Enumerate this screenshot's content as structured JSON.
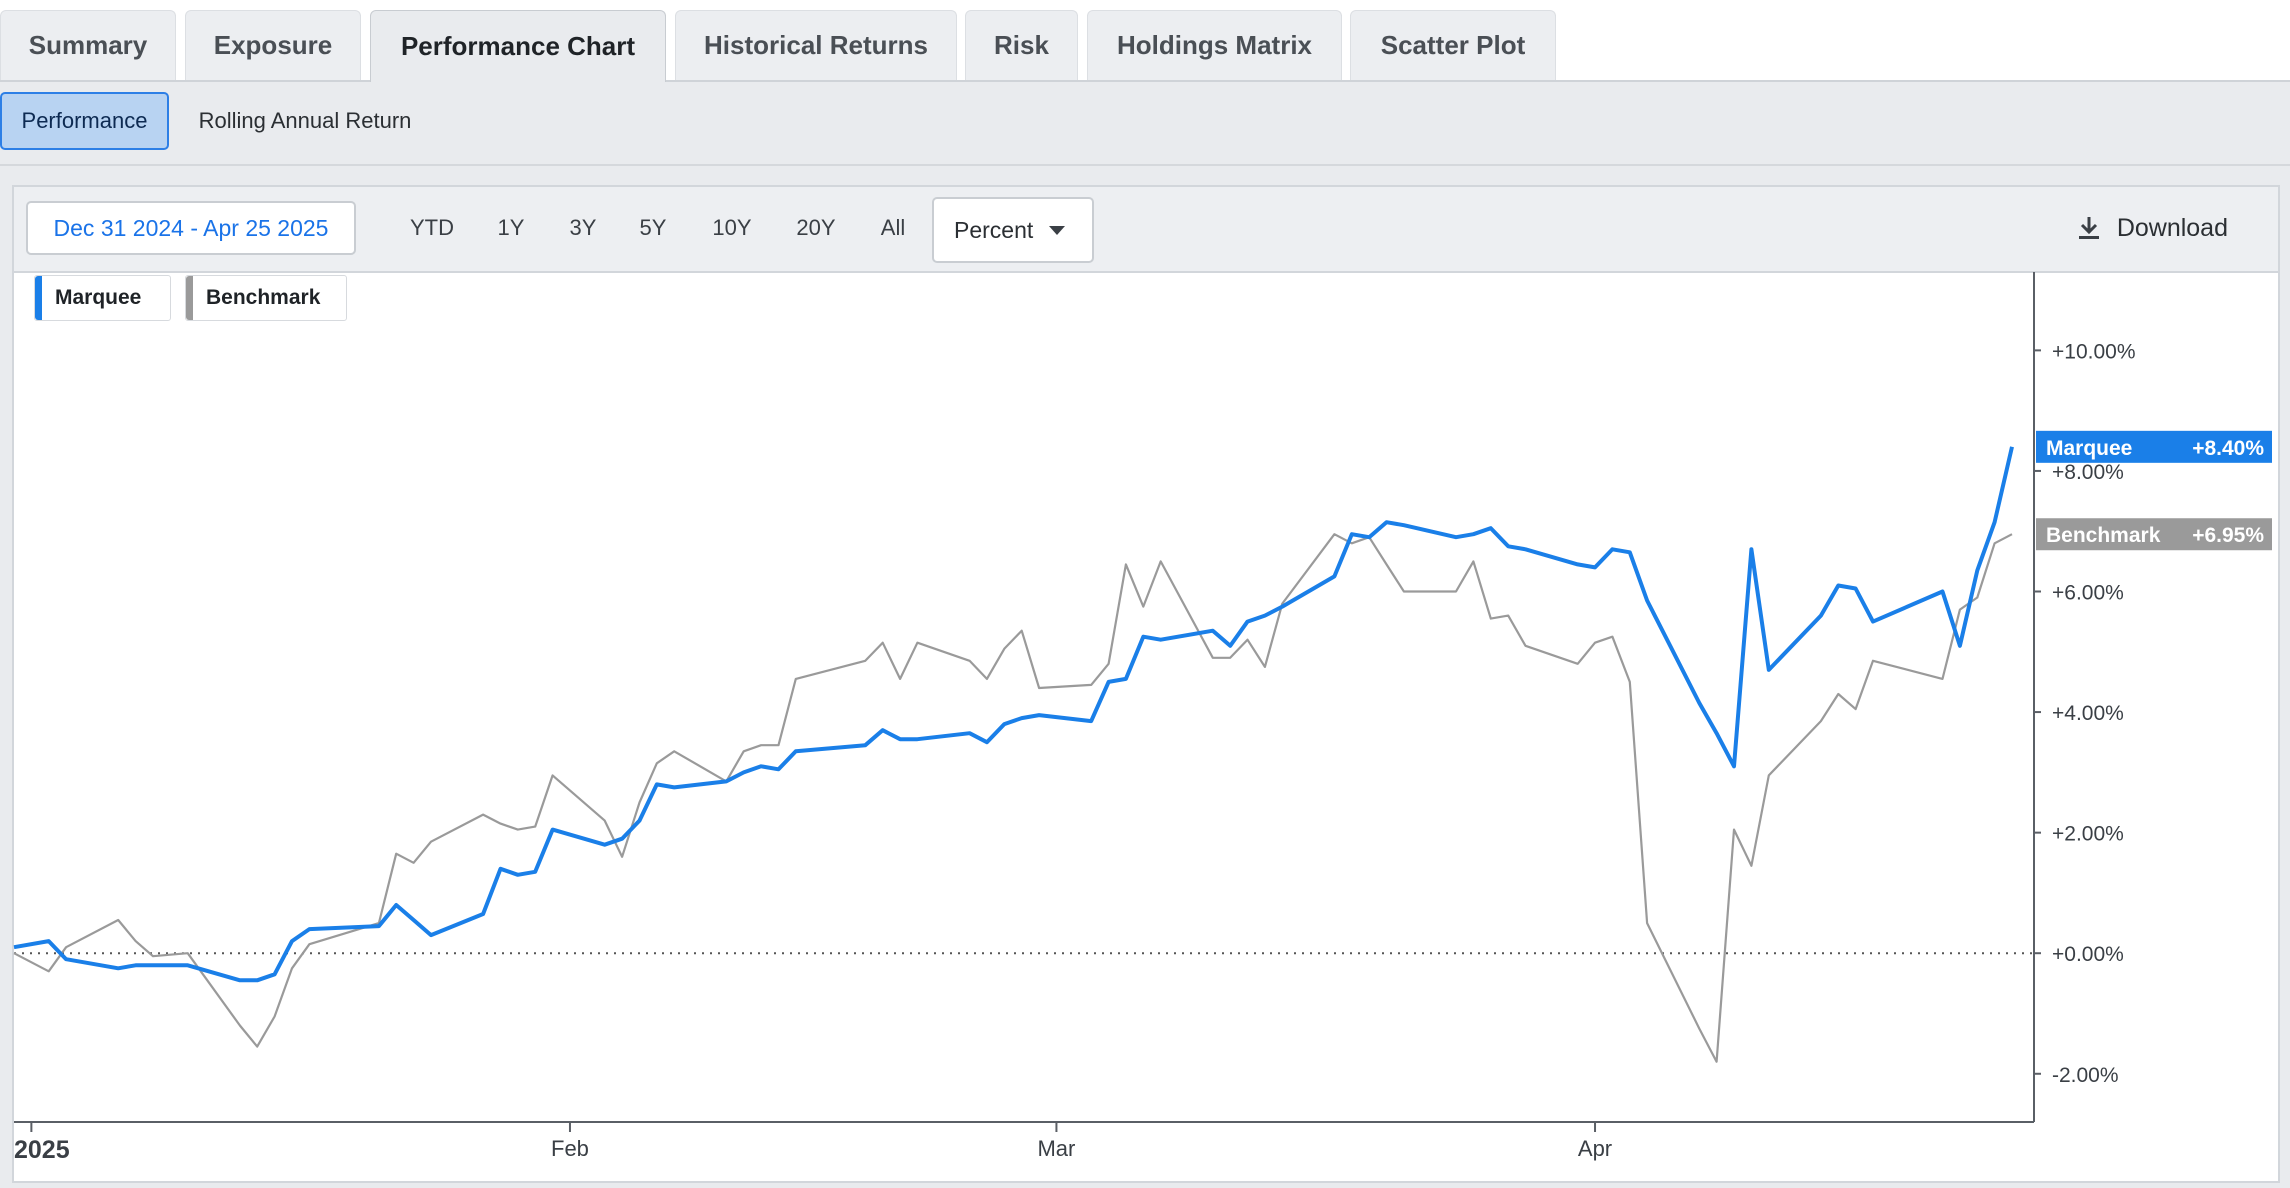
{
  "tabs": [
    {
      "label": "Summary"
    },
    {
      "label": "Exposure"
    },
    {
      "label": "Performance Chart",
      "active": true
    },
    {
      "label": "Historical Returns"
    },
    {
      "label": "Risk"
    },
    {
      "label": "Holdings Matrix"
    },
    {
      "label": "Scatter Plot"
    }
  ],
  "subtabs": [
    {
      "label": "Performance",
      "active": true
    },
    {
      "label": "Rolling Annual Return"
    }
  ],
  "toolbar": {
    "date_range": "Dec 31 2024 - Apr 25 2025",
    "ranges": [
      "YTD",
      "1Y",
      "3Y",
      "5Y",
      "10Y",
      "20Y",
      "All"
    ],
    "mode": "Percent",
    "download_label": "Download"
  },
  "colors": {
    "marquee": "#1a7fe8",
    "benchmark": "#9a9a9a",
    "zero_line": "#555555"
  },
  "chart_data": {
    "type": "line",
    "ylim": [
      -2.8,
      11.3
    ],
    "yticks": [
      -2,
      0,
      2,
      4,
      6,
      8,
      10
    ],
    "ytick_labels": [
      "-2.00%",
      "+0.00%",
      "+2.00%",
      "+4.00%",
      "+6.00%",
      "+8.00%",
      "+10.00%"
    ],
    "xlim": [
      "2024-12-31",
      "2025-04-25"
    ],
    "xticks": [
      {
        "date": "2025-01-01",
        "label": "2025"
      },
      {
        "date": "2025-02-01",
        "label": "Feb"
      },
      {
        "date": "2025-03-01",
        "label": "Mar"
      },
      {
        "date": "2025-04-01",
        "label": "Apr"
      }
    ],
    "series": [
      {
        "name": "Marquee",
        "color": "#1a7fe8",
        "last_label": "+8.40%",
        "points": [
          [
            "2024-12-31",
            0.1
          ],
          [
            "2025-01-02",
            0.2
          ],
          [
            "2025-01-03",
            -0.1
          ],
          [
            "2025-01-06",
            -0.25
          ],
          [
            "2025-01-07",
            -0.2
          ],
          [
            "2025-01-08",
            -0.2
          ],
          [
            "2025-01-10",
            -0.2
          ],
          [
            "2025-01-13",
            -0.45
          ],
          [
            "2025-01-14",
            -0.45
          ],
          [
            "2025-01-15",
            -0.35
          ],
          [
            "2025-01-16",
            0.2
          ],
          [
            "2025-01-17",
            0.4
          ],
          [
            "2025-01-21",
            0.45
          ],
          [
            "2025-01-22",
            0.8
          ],
          [
            "2025-01-23",
            0.55
          ],
          [
            "2025-01-24",
            0.3
          ],
          [
            "2025-01-27",
            0.65
          ],
          [
            "2025-01-28",
            1.4
          ],
          [
            "2025-01-29",
            1.3
          ],
          [
            "2025-01-30",
            1.35
          ],
          [
            "2025-01-31",
            2.05
          ],
          [
            "2025-02-03",
            1.8
          ],
          [
            "2025-02-04",
            1.9
          ],
          [
            "2025-02-05",
            2.2
          ],
          [
            "2025-02-06",
            2.8
          ],
          [
            "2025-02-07",
            2.75
          ],
          [
            "2025-02-10",
            2.85
          ],
          [
            "2025-02-11",
            3.0
          ],
          [
            "2025-02-12",
            3.1
          ],
          [
            "2025-02-13",
            3.05
          ],
          [
            "2025-02-14",
            3.35
          ],
          [
            "2025-02-18",
            3.45
          ],
          [
            "2025-02-19",
            3.7
          ],
          [
            "2025-02-20",
            3.55
          ],
          [
            "2025-02-21",
            3.55
          ],
          [
            "2025-02-24",
            3.65
          ],
          [
            "2025-02-25",
            3.5
          ],
          [
            "2025-02-26",
            3.8
          ],
          [
            "2025-02-27",
            3.9
          ],
          [
            "2025-02-28",
            3.95
          ],
          [
            "2025-03-03",
            3.85
          ],
          [
            "2025-03-04",
            4.5
          ],
          [
            "2025-03-05",
            4.55
          ],
          [
            "2025-03-06",
            5.25
          ],
          [
            "2025-03-07",
            5.2
          ],
          [
            "2025-03-10",
            5.35
          ],
          [
            "2025-03-11",
            5.1
          ],
          [
            "2025-03-12",
            5.5
          ],
          [
            "2025-03-13",
            5.6
          ],
          [
            "2025-03-14",
            5.75
          ],
          [
            "2025-03-17",
            6.25
          ],
          [
            "2025-03-18",
            6.95
          ],
          [
            "2025-03-19",
            6.9
          ],
          [
            "2025-03-20",
            7.15
          ],
          [
            "2025-03-21",
            7.1
          ],
          [
            "2025-03-24",
            6.9
          ],
          [
            "2025-03-25",
            6.95
          ],
          [
            "2025-03-26",
            7.05
          ],
          [
            "2025-03-27",
            6.75
          ],
          [
            "2025-03-28",
            6.7
          ],
          [
            "2025-03-31",
            6.45
          ],
          [
            "2025-04-01",
            6.4
          ],
          [
            "2025-04-02",
            6.7
          ],
          [
            "2025-04-03",
            6.65
          ],
          [
            "2025-04-04",
            5.85
          ],
          [
            "2025-04-07",
            4.15
          ],
          [
            "2025-04-08",
            3.65
          ],
          [
            "2025-04-09",
            3.1
          ],
          [
            "2025-04-10",
            6.7
          ],
          [
            "2025-04-11",
            4.7
          ],
          [
            "2025-04-14",
            5.6
          ],
          [
            "2025-04-15",
            6.1
          ],
          [
            "2025-04-16",
            6.05
          ],
          [
            "2025-04-17",
            5.5
          ],
          [
            "2025-04-21",
            6.0
          ],
          [
            "2025-04-22",
            5.1
          ],
          [
            "2025-04-23",
            6.35
          ],
          [
            "2025-04-24",
            7.15
          ],
          [
            "2025-04-25",
            8.4
          ]
        ]
      },
      {
        "name": "Benchmark",
        "color": "#9a9a9a",
        "last_label": "+6.95%",
        "points": [
          [
            "2024-12-31",
            0.0
          ],
          [
            "2025-01-02",
            -0.3
          ],
          [
            "2025-01-03",
            0.1
          ],
          [
            "2025-01-06",
            0.55
          ],
          [
            "2025-01-07",
            0.2
          ],
          [
            "2025-01-08",
            -0.05
          ],
          [
            "2025-01-10",
            0.0
          ],
          [
            "2025-01-13",
            -1.2
          ],
          [
            "2025-01-14",
            -1.55
          ],
          [
            "2025-01-15",
            -1.05
          ],
          [
            "2025-01-16",
            -0.25
          ],
          [
            "2025-01-17",
            0.15
          ],
          [
            "2025-01-21",
            0.5
          ],
          [
            "2025-01-22",
            1.65
          ],
          [
            "2025-01-23",
            1.5
          ],
          [
            "2025-01-24",
            1.85
          ],
          [
            "2025-01-27",
            2.3
          ],
          [
            "2025-01-28",
            2.15
          ],
          [
            "2025-01-29",
            2.05
          ],
          [
            "2025-01-30",
            2.1
          ],
          [
            "2025-01-31",
            2.95
          ],
          [
            "2025-02-03",
            2.2
          ],
          [
            "2025-02-04",
            1.6
          ],
          [
            "2025-02-05",
            2.5
          ],
          [
            "2025-02-06",
            3.15
          ],
          [
            "2025-02-07",
            3.35
          ],
          [
            "2025-02-10",
            2.85
          ],
          [
            "2025-02-11",
            3.35
          ],
          [
            "2025-02-12",
            3.45
          ],
          [
            "2025-02-13",
            3.45
          ],
          [
            "2025-02-14",
            4.55
          ],
          [
            "2025-02-18",
            4.85
          ],
          [
            "2025-02-19",
            5.15
          ],
          [
            "2025-02-20",
            4.55
          ],
          [
            "2025-02-21",
            5.15
          ],
          [
            "2025-02-24",
            4.85
          ],
          [
            "2025-02-25",
            4.55
          ],
          [
            "2025-02-26",
            5.05
          ],
          [
            "2025-02-27",
            5.35
          ],
          [
            "2025-02-28",
            4.4
          ],
          [
            "2025-03-03",
            4.45
          ],
          [
            "2025-03-04",
            4.8
          ],
          [
            "2025-03-05",
            6.45
          ],
          [
            "2025-03-06",
            5.75
          ],
          [
            "2025-03-07",
            6.5
          ],
          [
            "2025-03-10",
            4.9
          ],
          [
            "2025-03-11",
            4.9
          ],
          [
            "2025-03-12",
            5.2
          ],
          [
            "2025-03-13",
            4.75
          ],
          [
            "2025-03-14",
            5.8
          ],
          [
            "2025-03-17",
            6.95
          ],
          [
            "2025-03-18",
            6.8
          ],
          [
            "2025-03-19",
            6.9
          ],
          [
            "2025-03-20",
            6.45
          ],
          [
            "2025-03-21",
            6.0
          ],
          [
            "2025-03-24",
            6.0
          ],
          [
            "2025-03-25",
            6.5
          ],
          [
            "2025-03-26",
            5.55
          ],
          [
            "2025-03-27",
            5.6
          ],
          [
            "2025-03-28",
            5.1
          ],
          [
            "2025-03-31",
            4.8
          ],
          [
            "2025-04-01",
            5.15
          ],
          [
            "2025-04-02",
            5.25
          ],
          [
            "2025-04-03",
            4.5
          ],
          [
            "2025-04-04",
            0.5
          ],
          [
            "2025-04-07",
            -1.25
          ],
          [
            "2025-04-08",
            -1.8
          ],
          [
            "2025-04-09",
            2.05
          ],
          [
            "2025-04-10",
            1.45
          ],
          [
            "2025-04-11",
            2.95
          ],
          [
            "2025-04-14",
            3.85
          ],
          [
            "2025-04-15",
            4.3
          ],
          [
            "2025-04-16",
            4.05
          ],
          [
            "2025-04-17",
            4.85
          ],
          [
            "2025-04-21",
            4.55
          ],
          [
            "2025-04-22",
            5.7
          ],
          [
            "2025-04-23",
            5.9
          ],
          [
            "2025-04-24",
            6.8
          ],
          [
            "2025-04-25",
            6.95
          ]
        ]
      }
    ]
  }
}
